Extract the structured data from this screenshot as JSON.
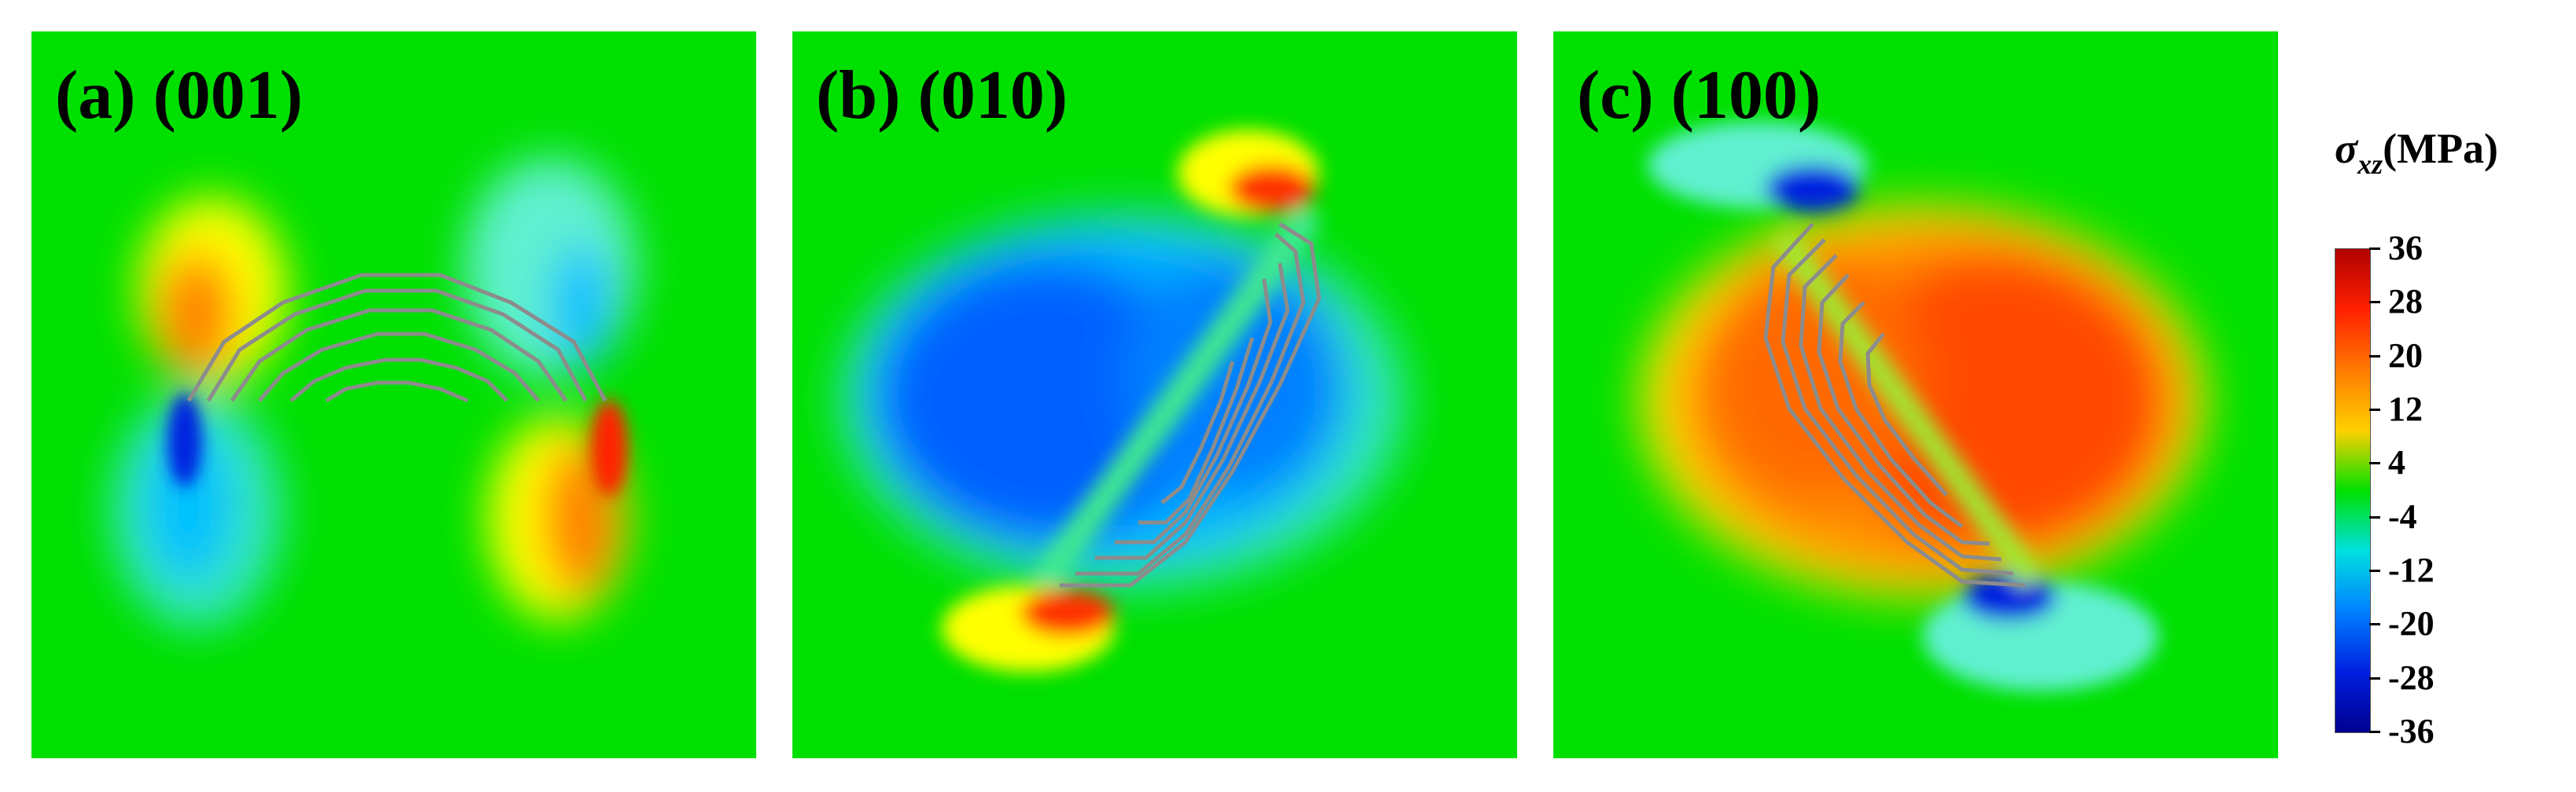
{
  "chart_data": [
    {
      "type": "heatmap",
      "panel_label": "(a) (001)",
      "field": "σxz",
      "unit": "MPa",
      "range": [
        -36,
        36
      ],
      "lobes": [
        {
          "position": "upper-left",
          "sign": "positive",
          "peak": 24
        },
        {
          "position": "upper-right",
          "sign": "negative",
          "peak": -14
        },
        {
          "position": "lower-left",
          "sign": "negative",
          "peak": -34
        },
        {
          "position": "lower-right",
          "sign": "positive",
          "peak": 34
        }
      ],
      "background_value": 0
    },
    {
      "type": "heatmap",
      "panel_label": "(b) (010)",
      "field": "σxz",
      "unit": "MPa",
      "range": [
        -36,
        36
      ],
      "lobes": [
        {
          "position": "center-left",
          "sign": "negative",
          "peak": -28
        },
        {
          "position": "upper-right tip",
          "sign": "positive",
          "peak": 36
        },
        {
          "position": "lower-left tip",
          "sign": "positive",
          "peak": 36
        }
      ],
      "background_value": 0
    },
    {
      "type": "heatmap",
      "panel_label": "(c) (100)",
      "field": "σxz",
      "unit": "MPa",
      "range": [
        -36,
        36
      ],
      "lobes": [
        {
          "position": "center-right",
          "sign": "positive",
          "peak": 30
        },
        {
          "position": "upper-left tip",
          "sign": "negative",
          "peak": -36
        },
        {
          "position": "lower-right tip",
          "sign": "negative",
          "peak": -36
        }
      ],
      "background_value": 0
    }
  ],
  "colorbar": {
    "title_symbol": "σ",
    "title_subscript": "xz",
    "title_unit": "(MPa)",
    "ticks": [
      "36",
      "28",
      "20",
      "12",
      "4",
      "-4",
      "-12",
      "-20",
      "-28",
      "-36"
    ],
    "colors": [
      "#b00000",
      "#ff2000",
      "#ff7a00",
      "#ffd000",
      "#00e000",
      "#00e0e0",
      "#0080ff",
      "#0020e0",
      "#000090"
    ]
  }
}
